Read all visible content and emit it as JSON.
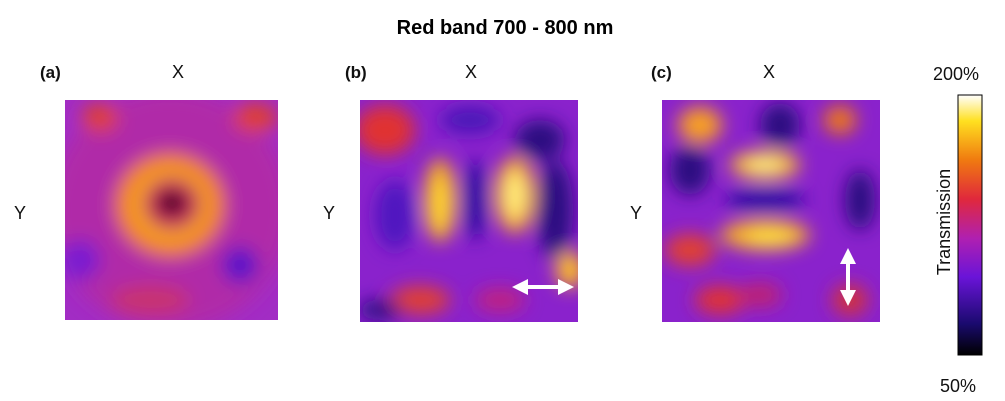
{
  "title": "Red band 700 - 800 nm",
  "panels": [
    {
      "label": "(a)",
      "x_label": "X",
      "y_label": "Y"
    },
    {
      "label": "(b)",
      "x_label": "X",
      "y_label": "Y"
    },
    {
      "label": "(c)",
      "x_label": "X",
      "y_label": "Y"
    }
  ],
  "colorbar": {
    "label": "Transmission",
    "max": "200%",
    "min": "50%"
  }
}
